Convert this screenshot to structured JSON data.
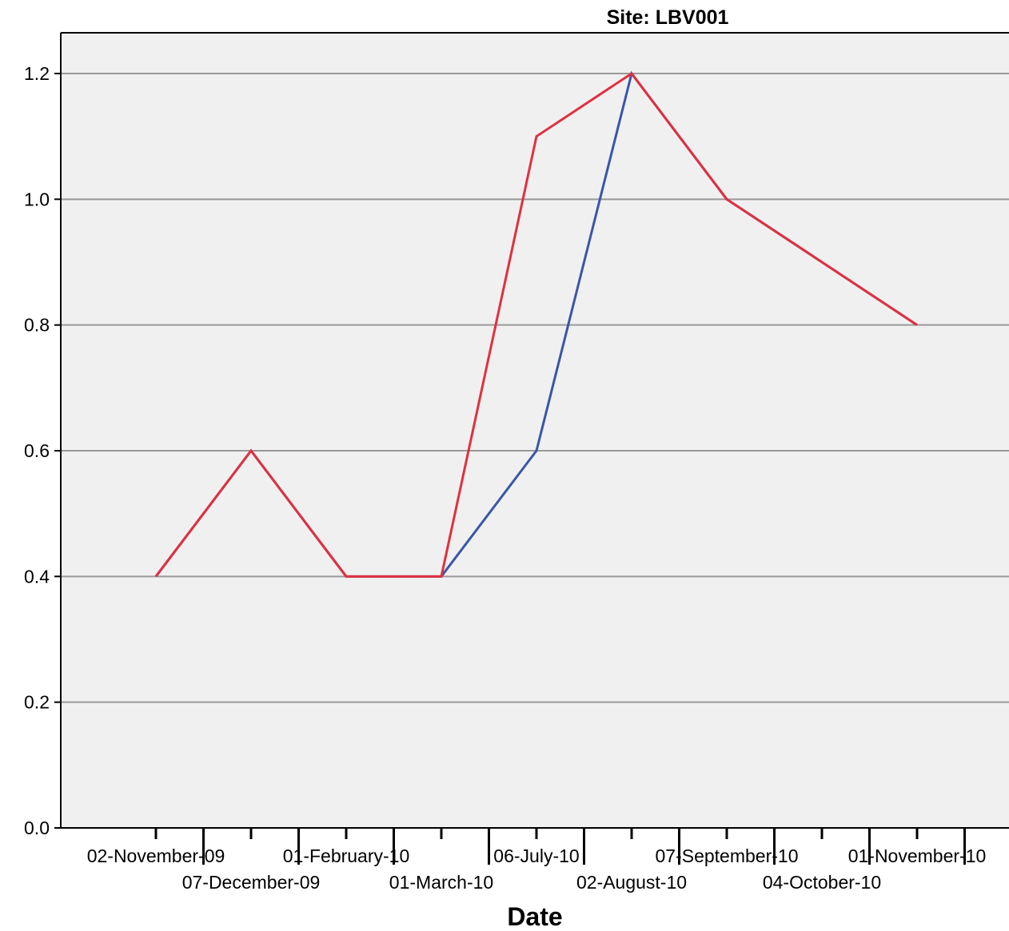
{
  "chart_data": {
    "type": "line",
    "title": "Site: LBV001",
    "xlabel": "Date",
    "ylabel": "",
    "ylim": [
      0,
      1.2
    ],
    "yticks": [
      "0.0",
      "0.2",
      "0.4",
      "0.6",
      "0.8",
      "1.0",
      "1.2"
    ],
    "grid": true,
    "categories": [
      "02-November-09",
      "07-December-09",
      "01-February-10",
      "01-March-10",
      "06-July-10",
      "02-August-10",
      "07-September-10",
      "04-October-10",
      "01-November-10"
    ],
    "series": [
      {
        "color": "#3a56a8",
        "values": [
          0.4,
          0.6,
          0.4,
          0.4,
          0.6,
          1.2,
          1.0,
          0.9,
          0.8
        ]
      },
      {
        "color": "#e03040",
        "values": [
          0.4,
          0.6,
          0.4,
          0.4,
          1.1,
          1.2,
          1.0,
          0.9,
          0.8
        ]
      }
    ],
    "colors": {
      "plot_background": "#f0f0f0",
      "gridline": "#999999",
      "axis": "#000000"
    }
  }
}
